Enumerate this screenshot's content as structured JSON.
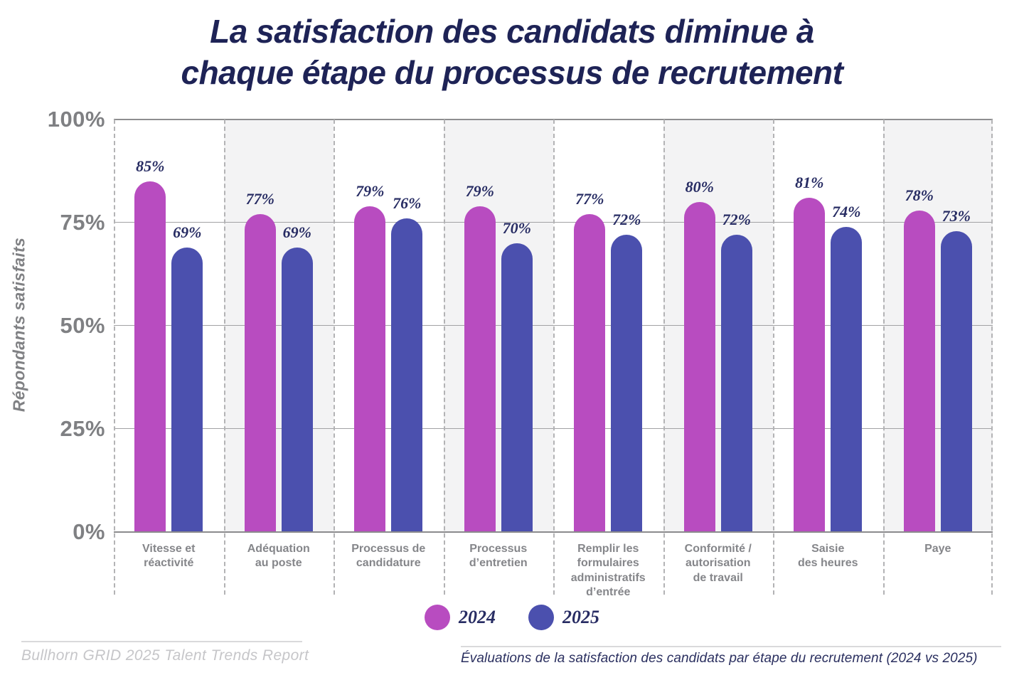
{
  "title": {
    "line1": "La satisfaction des candidats diminue à",
    "line2": "chaque étape du processus de recrutement"
  },
  "colors": {
    "series_2024": "#b84cc0",
    "series_2025": "#4b50ae",
    "title_navy": "#1e2356",
    "value_navy": "#272c63",
    "axis_gray": "#7f8083",
    "panel_alt_gray": "#f3f3f4"
  },
  "chart_data": {
    "type": "bar",
    "title": "La satisfaction des candidats diminue à chaque étape du processus de recrutement",
    "xlabel": "",
    "ylabel": "Répondants satisfaits",
    "ylim": [
      0,
      100
    ],
    "grid": true,
    "legend_position": "bottom",
    "y_ticks": [
      {
        "value": 100,
        "label": "100%"
      },
      {
        "value": 75,
        "label": "75%"
      },
      {
        "value": 50,
        "label": "50%"
      },
      {
        "value": 25,
        "label": "25%"
      },
      {
        "value": 0,
        "label": "0%"
      }
    ],
    "categories": [
      "Vitesse et\nréactivité",
      "Adéquation\nau poste",
      "Processus de\ncandidature",
      "Processus\nd’entretien",
      "Remplir les\nformulaires\nadministratifs\nd’entrée",
      "Conformité /\nautorisation\nde travail",
      "Saisie\ndes heures",
      "Paye"
    ],
    "series": [
      {
        "name": "2024",
        "color": "#b84cc0",
        "values": [
          85,
          77,
          79,
          79,
          77,
          80,
          81,
          78
        ]
      },
      {
        "name": "2025",
        "color": "#4b50ae",
        "values": [
          69,
          69,
          76,
          70,
          72,
          72,
          74,
          73
        ]
      }
    ],
    "value_label_suffix": "%"
  },
  "legend": {
    "items": [
      {
        "label": "2024",
        "color": "#b84cc0"
      },
      {
        "label": "2025",
        "color": "#4b50ae"
      }
    ]
  },
  "footer": {
    "source_left": "Bullhorn GRID 2025 Talent Trends Report",
    "caption_right": "Évaluations de la satisfaction des candidats par étape du recrutement (2024 vs 2025)"
  }
}
